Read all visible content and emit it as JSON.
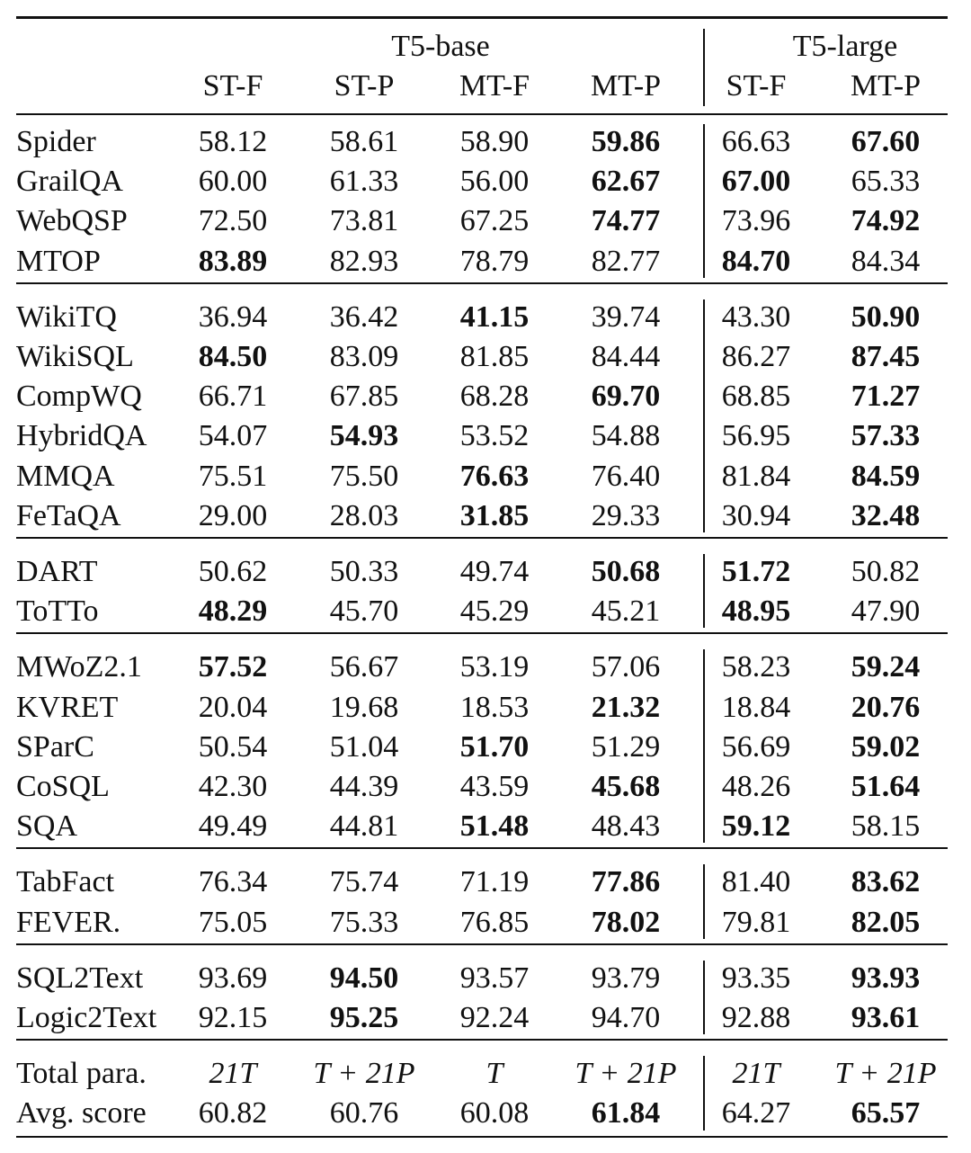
{
  "header": {
    "groups": [
      {
        "label": "T5-base"
      },
      {
        "label": "T5-large"
      }
    ],
    "columns": [
      "ST-F",
      "ST-P",
      "MT-F",
      "MT-P",
      "ST-F",
      "MT-P"
    ]
  },
  "sections": [
    {
      "rows": [
        {
          "name": "Spider",
          "values": [
            "58.12",
            "58.61",
            "58.90",
            "59.86",
            "66.63",
            "67.60"
          ],
          "bold": [
            3,
            5
          ]
        },
        {
          "name": "GrailQA",
          "values": [
            "60.00",
            "61.33",
            "56.00",
            "62.67",
            "67.00",
            "65.33"
          ],
          "bold": [
            3,
            4
          ]
        },
        {
          "name": "WebQSP",
          "values": [
            "72.50",
            "73.81",
            "67.25",
            "74.77",
            "73.96",
            "74.92"
          ],
          "bold": [
            3,
            5
          ]
        },
        {
          "name": "MTOP",
          "values": [
            "83.89",
            "82.93",
            "78.79",
            "82.77",
            "84.70",
            "84.34"
          ],
          "bold": [
            0,
            4
          ]
        }
      ]
    },
    {
      "rows": [
        {
          "name": "WikiTQ",
          "values": [
            "36.94",
            "36.42",
            "41.15",
            "39.74",
            "43.30",
            "50.90"
          ],
          "bold": [
            2,
            5
          ]
        },
        {
          "name": "WikiSQL",
          "values": [
            "84.50",
            "83.09",
            "81.85",
            "84.44",
            "86.27",
            "87.45"
          ],
          "bold": [
            0,
            5
          ]
        },
        {
          "name": "CompWQ",
          "values": [
            "66.71",
            "67.85",
            "68.28",
            "69.70",
            "68.85",
            "71.27"
          ],
          "bold": [
            3,
            5
          ]
        },
        {
          "name": "HybridQA",
          "values": [
            "54.07",
            "54.93",
            "53.52",
            "54.88",
            "56.95",
            "57.33"
          ],
          "bold": [
            1,
            5
          ]
        },
        {
          "name": "MMQA",
          "values": [
            "75.51",
            "75.50",
            "76.63",
            "76.40",
            "81.84",
            "84.59"
          ],
          "bold": [
            2,
            5
          ]
        },
        {
          "name": "FeTaQA",
          "values": [
            "29.00",
            "28.03",
            "31.85",
            "29.33",
            "30.94",
            "32.48"
          ],
          "bold": [
            2,
            5
          ]
        }
      ]
    },
    {
      "rows": [
        {
          "name": "DART",
          "values": [
            "50.62",
            "50.33",
            "49.74",
            "50.68",
            "51.72",
            "50.82"
          ],
          "bold": [
            3,
            4
          ]
        },
        {
          "name": "ToTTo",
          "values": [
            "48.29",
            "45.70",
            "45.29",
            "45.21",
            "48.95",
            "47.90"
          ],
          "bold": [
            0,
            4
          ]
        }
      ]
    },
    {
      "rows": [
        {
          "name": "MWoZ2.1",
          "values": [
            "57.52",
            "56.67",
            "53.19",
            "57.06",
            "58.23",
            "59.24"
          ],
          "bold": [
            0,
            5
          ]
        },
        {
          "name": "KVRET",
          "values": [
            "20.04",
            "19.68",
            "18.53",
            "21.32",
            "18.84",
            "20.76"
          ],
          "bold": [
            3,
            5
          ]
        },
        {
          "name": "SParC",
          "values": [
            "50.54",
            "51.04",
            "51.70",
            "51.29",
            "56.69",
            "59.02"
          ],
          "bold": [
            2,
            5
          ]
        },
        {
          "name": "CoSQL",
          "values": [
            "42.30",
            "44.39",
            "43.59",
            "45.68",
            "48.26",
            "51.64"
          ],
          "bold": [
            3,
            5
          ]
        },
        {
          "name": "SQA",
          "values": [
            "49.49",
            "44.81",
            "51.48",
            "48.43",
            "59.12",
            "58.15"
          ],
          "bold": [
            2,
            4
          ]
        }
      ]
    },
    {
      "rows": [
        {
          "name": "TabFact",
          "values": [
            "76.34",
            "75.74",
            "71.19",
            "77.86",
            "81.40",
            "83.62"
          ],
          "bold": [
            3,
            5
          ]
        },
        {
          "name": "FEVER.",
          "values": [
            "75.05",
            "75.33",
            "76.85",
            "78.02",
            "79.81",
            "82.05"
          ],
          "bold": [
            3,
            5
          ]
        }
      ]
    },
    {
      "rows": [
        {
          "name": "SQL2Text",
          "values": [
            "93.69",
            "94.50",
            "93.57",
            "93.79",
            "93.35",
            "93.93"
          ],
          "bold": [
            1,
            5
          ]
        },
        {
          "name": "Logic2Text",
          "values": [
            "92.15",
            "95.25",
            "92.24",
            "94.70",
            "92.88",
            "93.61"
          ],
          "bold": [
            1,
            5
          ]
        }
      ]
    },
    {
      "rows": [
        {
          "name": "Total para.",
          "values": [
            "21T",
            "T + 21P",
            "T",
            "T + 21P",
            "21T",
            "T + 21P"
          ],
          "bold": [],
          "italic": true
        },
        {
          "name": "Avg. score",
          "values": [
            "60.82",
            "60.76",
            "60.08",
            "61.84",
            "64.27",
            "65.57"
          ],
          "bold": [
            3,
            5
          ]
        }
      ]
    }
  ]
}
